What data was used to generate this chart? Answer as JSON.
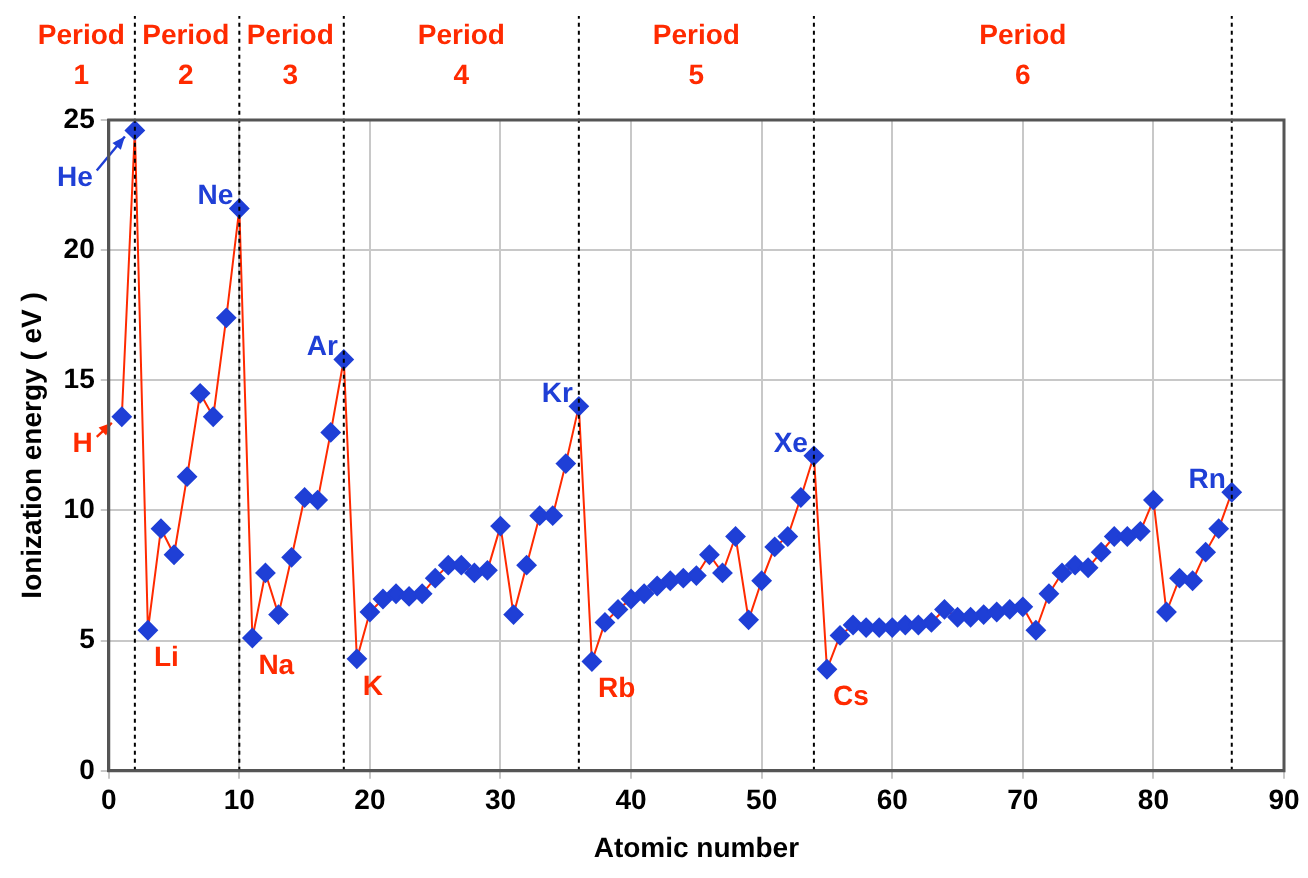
{
  "chart_data": {
    "type": "line",
    "xlabel": "Atomic number",
    "ylabel": "Ionization energy ( eV )",
    "x": [
      1,
      2,
      3,
      4,
      5,
      6,
      7,
      8,
      9,
      10,
      11,
      12,
      13,
      14,
      15,
      16,
      17,
      18,
      19,
      20,
      21,
      22,
      23,
      24,
      25,
      26,
      27,
      28,
      29,
      30,
      31,
      32,
      33,
      34,
      35,
      36,
      37,
      38,
      39,
      40,
      41,
      42,
      43,
      44,
      45,
      46,
      47,
      48,
      49,
      50,
      51,
      52,
      53,
      54,
      55,
      56,
      57,
      58,
      59,
      60,
      61,
      62,
      63,
      64,
      65,
      66,
      67,
      68,
      69,
      70,
      71,
      72,
      73,
      74,
      75,
      76,
      77,
      78,
      79,
      80,
      81,
      82,
      83,
      84,
      85,
      86
    ],
    "series": [
      {
        "color": "#1f3fd6",
        "values": [
          13.6,
          24.6,
          5.4,
          9.3,
          8.3,
          11.3,
          14.5,
          13.6,
          17.4,
          21.6,
          5.1,
          7.6,
          6.0,
          8.2,
          10.5,
          10.4,
          13.0,
          15.8,
          4.3,
          6.1,
          6.6,
          6.8,
          6.7,
          6.8,
          7.4,
          7.9,
          7.9,
          7.6,
          7.7,
          9.4,
          6.0,
          7.9,
          9.8,
          9.8,
          11.8,
          14.0,
          4.2,
          5.7,
          6.2,
          6.6,
          6.8,
          7.1,
          7.3,
          7.4,
          7.5,
          8.3,
          7.6,
          9.0,
          5.8,
          7.3,
          8.6,
          9.0,
          10.5,
          12.1,
          3.9,
          5.2,
          5.6,
          5.5,
          5.5,
          5.5,
          5.6,
          5.6,
          5.7,
          6.2,
          5.9,
          5.9,
          6.0,
          6.1,
          6.2,
          6.3,
          5.4,
          6.8,
          7.6,
          7.9,
          7.8,
          8.4,
          9.0,
          9.0,
          9.2,
          10.4,
          6.1,
          7.4,
          7.3,
          8.4,
          9.3,
          10.7
        ]
      }
    ],
    "xlim": [
      0,
      90
    ],
    "xticks": [
      0,
      10,
      20,
      30,
      40,
      50,
      60,
      70,
      80,
      90
    ],
    "ylim": [
      0,
      25
    ],
    "yticks": [
      0,
      5,
      10,
      15,
      20,
      25
    ],
    "grid": true,
    "legend": false,
    "marker": "diamond",
    "line_style": "solid",
    "ref_lines": [
      {
        "axis": "x",
        "value": 2,
        "color": "#000000",
        "line_style": "dotted"
      },
      {
        "axis": "x",
        "value": 10,
        "color": "#000000",
        "line_style": "dotted"
      },
      {
        "axis": "x",
        "value": 18,
        "color": "#000000",
        "line_style": "dotted"
      },
      {
        "axis": "x",
        "value": 36,
        "color": "#000000",
        "line_style": "dotted"
      },
      {
        "axis": "x",
        "value": 54,
        "color": "#000000",
        "line_style": "dotted"
      },
      {
        "axis": "x",
        "value": 86,
        "color": "#000000",
        "line_style": "dotted"
      }
    ],
    "annotations": [
      "Period 1",
      "Period 2",
      "Period 3",
      "Period 4",
      "Period 5",
      "Period 6",
      {
        "text": "H",
        "x": 1,
        "y": 13.6
      },
      {
        "text": "He",
        "x": 2,
        "y": 24.6
      },
      {
        "text": "Li",
        "x": 3,
        "y": 5.4
      },
      {
        "text": "Ne",
        "x": 10,
        "y": 21.6
      },
      {
        "text": "Na",
        "x": 11,
        "y": 5.1
      },
      {
        "text": "Ar",
        "x": 18,
        "y": 15.8
      },
      {
        "text": "K",
        "x": 19,
        "y": 4.3
      },
      {
        "text": "Kr",
        "x": 36,
        "y": 14.0
      },
      {
        "text": "Rb",
        "x": 37,
        "y": 4.2
      },
      {
        "text": "Xe",
        "x": 54,
        "y": 12.1
      },
      {
        "text": "Cs",
        "x": 55,
        "y": 3.9
      },
      {
        "text": "Rn",
        "x": 86,
        "y": 10.7
      }
    ]
  }
}
